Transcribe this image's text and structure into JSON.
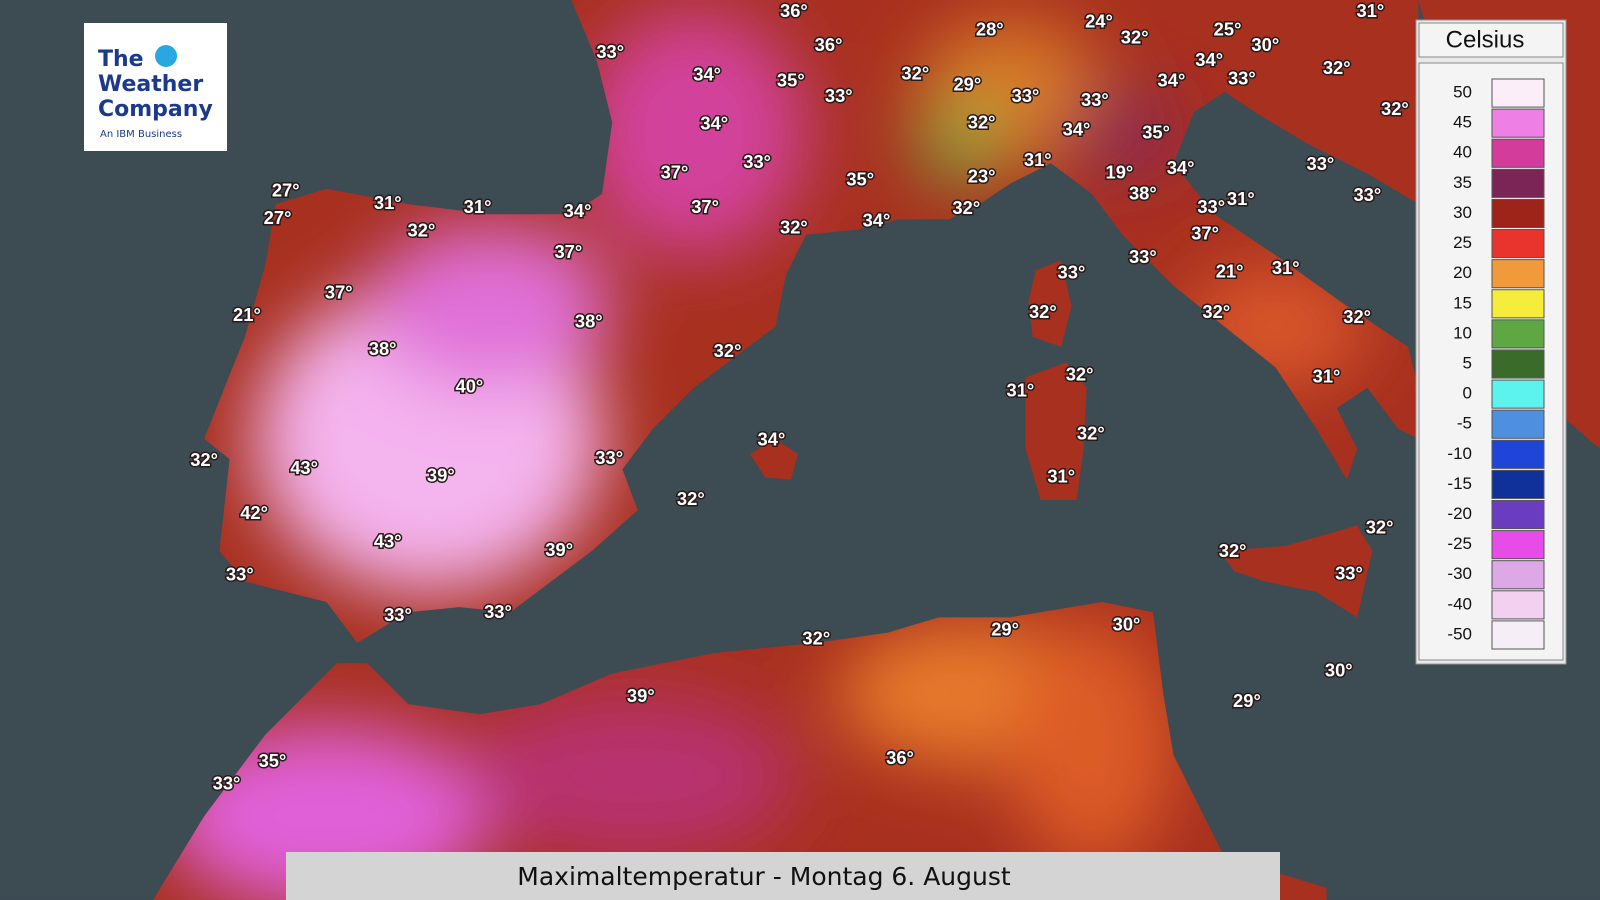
{
  "logo": {
    "line1": "The",
    "line2": "Weather",
    "line3": "Company",
    "tagline": "An IBM Business"
  },
  "legend": {
    "title": "Celsius",
    "entries": [
      {
        "label": 50,
        "color": "#fbeef8"
      },
      {
        "label": 45,
        "color": "#ee7fe5"
      },
      {
        "label": 40,
        "color": "#d43c9c"
      },
      {
        "label": 35,
        "color": "#7a2556"
      },
      {
        "label": 30,
        "color": "#9e2419"
      },
      {
        "label": 25,
        "color": "#e8342c"
      },
      {
        "label": 20,
        "color": "#f09a3c"
      },
      {
        "label": 15,
        "color": "#f5ec3c"
      },
      {
        "label": 10,
        "color": "#5da843"
      },
      {
        "label": 5,
        "color": "#3a6b2a"
      },
      {
        "label": 0,
        "color": "#5cf2ee"
      },
      {
        "label": -5,
        "color": "#4f8fe0"
      },
      {
        "label": -10,
        "color": "#1e44d8"
      },
      {
        "label": -15,
        "color": "#10309a"
      },
      {
        "label": -20,
        "color": "#6a3cc0"
      },
      {
        "label": -25,
        "color": "#e84ce8"
      },
      {
        "label": -30,
        "color": "#dca8e6"
      },
      {
        "label": -40,
        "color": "#f3d0f0"
      },
      {
        "label": -50,
        "color": "#f6eef6"
      }
    ]
  },
  "temperatures": [
    "36°",
    "36°",
    "33°",
    "34°",
    "35°",
    "33°",
    "32°",
    "29°",
    "28°",
    "24°",
    "32°",
    "25°",
    "30°",
    "31°",
    "32°",
    "34°",
    "33°",
    "34°",
    "33°",
    "33°",
    "32°",
    "34°",
    "33°",
    "34°",
    "35°",
    "32°",
    "37°",
    "35°",
    "31°",
    "19°",
    "34°",
    "23°",
    "33°",
    "38°",
    "33°",
    "31°",
    "33°",
    "27°",
    "31°",
    "31°",
    "34°",
    "27°",
    "32°",
    "37°",
    "32°",
    "34°",
    "32°",
    "37°",
    "37°",
    "33°",
    "33°",
    "21°",
    "31°",
    "37°",
    "21°",
    "38°",
    "32°",
    "32°",
    "32°",
    "38°",
    "32°",
    "32°",
    "31°",
    "40°",
    "31°",
    "34°",
    "32°",
    "32°",
    "43°",
    "33°",
    "39°",
    "31°",
    "32°",
    "42°",
    "43°",
    "39°",
    "32°",
    "32°",
    "33°",
    "33°",
    "33°",
    "33°",
    "32°",
    "29°",
    "30°",
    "30°",
    "29°",
    "39°",
    "35°",
    "33°",
    "36°"
  ],
  "caption": "Maximaltemperatur - Montag 6. August"
}
